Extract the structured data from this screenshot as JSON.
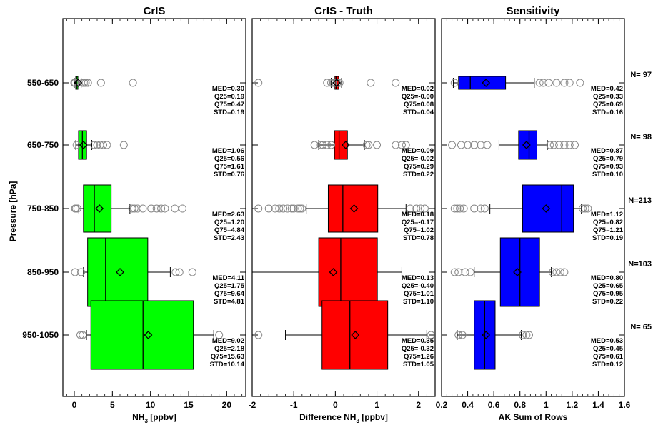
{
  "figure": {
    "ylabel": "Pressure [hPa]",
    "pressure_bins": [
      "550-650",
      "650-750",
      "750-850",
      "850-950",
      "950-1050"
    ]
  },
  "chart_data": [
    {
      "type": "boxplot",
      "title": "CrIS",
      "xlabel": "NH",
      "xlabel_sub": "3",
      "xlabel_unit": " [ppbv]",
      "xlim": [
        -1.5,
        22.5
      ],
      "xticks": [
        0,
        5,
        10,
        15,
        20
      ],
      "box_color": "#00ff00",
      "categories": [
        "550-650",
        "650-750",
        "750-850",
        "850-950",
        "950-1050"
      ],
      "boxes": [
        {
          "q25": 0.19,
          "med": 0.3,
          "q75": 0.47,
          "mean": 0.5,
          "wlo": 0.0,
          "whi": 0.9,
          "outliers": [
            0.0,
            0.1,
            1.1,
            1.3,
            1.5,
            1.8,
            3.5,
            7.7
          ]
        },
        {
          "q25": 0.56,
          "med": 1.06,
          "q75": 1.61,
          "mean": 1.2,
          "wlo": 0.2,
          "whi": 2.3,
          "outliers": [
            0.3,
            2.6,
            3.0,
            3.4,
            3.8,
            4.3,
            6.5
          ]
        },
        {
          "q25": 1.2,
          "med": 2.63,
          "q75": 4.84,
          "mean": 3.3,
          "wlo": 0.6,
          "whi": 7.3,
          "outliers": [
            0.1,
            0.2,
            0.4,
            7.6,
            7.9,
            8.3,
            9.0,
            10.1,
            10.8,
            11.4,
            11.9,
            13.2,
            14.2
          ]
        },
        {
          "q25": 1.75,
          "med": 4.11,
          "q75": 9.64,
          "mean": 6.0,
          "wlo": 1.2,
          "whi": 12.6,
          "outliers": [
            0.1,
            0.9,
            13.3,
            13.8,
            15.5
          ]
        },
        {
          "q25": 2.18,
          "med": 9.02,
          "q75": 15.63,
          "mean": 9.7,
          "wlo": 1.6,
          "whi": 18.3,
          "outliers": [
            0.8,
            1.1,
            19.0
          ]
        }
      ],
      "stats": [
        [
          "MED=0.30",
          "Q25=0.19",
          "Q75=0.47",
          "STD=0.19"
        ],
        [
          "MED=1.06",
          "Q25=0.56",
          "Q75=1.61",
          "STD=0.76"
        ],
        [
          "MED=2.63",
          "Q25=1.20",
          "Q75=4.84",
          "STD=2.43"
        ],
        [
          "MED=4.11",
          "Q25=1.75",
          "Q75=9.64",
          "STD=4.81"
        ],
        [
          "MED=9.02",
          "Q25=2.18",
          "Q75=15.63",
          "STD=10.14"
        ]
      ]
    },
    {
      "type": "boxplot",
      "title": "CrIS - Truth",
      "xlabel": "Difference NH",
      "xlabel_sub": "3",
      "xlabel_unit": " [ppbv]",
      "xlim": [
        -2,
        2.4
      ],
      "xticks": [
        -2,
        -1,
        0,
        1,
        2
      ],
      "box_color": "#ff0000",
      "categories": [
        "550-650",
        "650-750",
        "750-850",
        "850-950",
        "950-1050"
      ],
      "boxes": [
        {
          "q25": -0.01,
          "med": 0.02,
          "q75": 0.08,
          "mean": 0.03,
          "wlo": -0.1,
          "whi": 0.15,
          "outliers": [
            -1.85,
            -0.2,
            -0.1,
            -0.05,
            0.0,
            0.05,
            0.1,
            0.85,
            1.45
          ]
        },
        {
          "q25": -0.02,
          "med": 0.09,
          "q75": 0.29,
          "mean": 0.25,
          "wlo": -0.4,
          "whi": 0.7,
          "outliers": [
            -0.5,
            -0.35,
            -0.3,
            -0.2,
            -0.1,
            0.75,
            0.8,
            1.0,
            1.45,
            1.6,
            1.7
          ]
        },
        {
          "q25": -0.17,
          "med": 0.18,
          "q75": 1.02,
          "mean": 0.45,
          "wlo": -0.7,
          "whi": 1.7,
          "outliers": [
            -1.85,
            -1.6,
            -1.45,
            -1.35,
            -1.25,
            -1.15,
            -1.05,
            -1.0,
            -0.9,
            -0.85,
            -0.8,
            1.8,
            1.95,
            2.05,
            2.15
          ]
        },
        {
          "q25": -0.4,
          "med": 0.13,
          "q75": 1.01,
          "mean": -0.05,
          "wlo": -2.0,
          "whi": 1.6,
          "outliers": []
        },
        {
          "q25": -0.32,
          "med": 0.35,
          "q75": 1.26,
          "mean": 0.48,
          "wlo": -1.2,
          "whi": 2.2,
          "outliers": [
            -1.85,
            2.3
          ]
        }
      ],
      "stats": [
        [
          "MED=0.02",
          "Q25=-0.00",
          "Q75=0.08",
          "STD=0.04"
        ],
        [
          "MED=0.09",
          "Q25=-0.02",
          "Q75=0.29",
          "STD=0.22"
        ],
        [
          "MED=0.18",
          "Q25=-0.17",
          "Q75=1.02",
          "STD=0.78"
        ],
        [
          "MED=0.13",
          "Q25=-0.40",
          "Q75=1.01",
          "STD=1.10"
        ],
        [
          "MED=0.35",
          "Q25=-0.32",
          "Q75=1.26",
          "STD=1.05"
        ]
      ]
    },
    {
      "type": "boxplot",
      "title": "Sensitivity",
      "xlabel": "AK Sum of Rows",
      "xlabel_sub": "",
      "xlabel_unit": "",
      "xlim": [
        0.2,
        1.6
      ],
      "xticks": [
        0.2,
        0.4,
        0.6,
        0.8,
        1.0,
        1.2,
        1.4,
        1.6
      ],
      "xtick_labels": [
        "0.2",
        "0.4",
        "0.6",
        "0.8",
        "1",
        "1.2",
        "1.4",
        "1.6"
      ],
      "box_color": "#0000ff",
      "categories": [
        "550-650",
        "650-750",
        "750-850",
        "850-950",
        "950-1050"
      ],
      "boxes": [
        {
          "q25": 0.33,
          "med": 0.42,
          "q75": 0.69,
          "mean": 0.54,
          "wlo": 0.29,
          "whi": 0.91,
          "outliers": [
            0.3,
            0.95,
            0.98,
            1.02,
            1.08,
            1.14,
            1.18,
            1.26
          ]
        },
        {
          "q25": 0.79,
          "med": 0.87,
          "q75": 0.93,
          "mean": 0.85,
          "wlo": 0.64,
          "whi": 1.01,
          "outliers": [
            0.28,
            0.35,
            0.4,
            0.45,
            0.5,
            0.55,
            1.03,
            1.06,
            1.1,
            1.14,
            1.18,
            1.22
          ]
        },
        {
          "q25": 0.82,
          "med": 1.12,
          "q75": 1.21,
          "mean": 1.0,
          "wlo": 0.57,
          "whi": 1.27,
          "outliers": [
            0.3,
            0.32,
            0.34,
            0.37,
            0.45,
            0.5,
            0.53,
            1.28,
            1.3,
            1.32
          ]
        },
        {
          "q25": 0.65,
          "med": 0.8,
          "q75": 0.95,
          "mean": 0.78,
          "wlo": 0.45,
          "whi": 1.04,
          "outliers": [
            0.3,
            0.33,
            0.38,
            0.42,
            1.05,
            1.08,
            1.11,
            1.14
          ]
        },
        {
          "q25": 0.45,
          "med": 0.53,
          "q75": 0.61,
          "mean": 0.54,
          "wlo": 0.32,
          "whi": 0.81,
          "outliers": [
            0.33,
            0.36,
            0.82,
            0.85,
            0.87
          ]
        }
      ],
      "stats": [
        [
          "MED=0.42",
          "Q25=0.33",
          "Q75=0.69",
          "STD=0.16"
        ],
        [
          "MED=0.87",
          "Q25=0.79",
          "Q75=0.93",
          "STD=0.10"
        ],
        [
          "MED=1.12",
          "Q25=0.82",
          "Q75=1.21",
          "STD=0.19"
        ],
        [
          "MED=0.80",
          "Q25=0.65",
          "Q75=0.95",
          "STD=0.22"
        ],
        [
          "MED=0.53",
          "Q25=0.45",
          "Q75=0.61",
          "STD=0.12"
        ]
      ],
      "counts": [
        "N= 97",
        "N= 98",
        "N=213",
        "N=103",
        "N= 65"
      ]
    }
  ]
}
